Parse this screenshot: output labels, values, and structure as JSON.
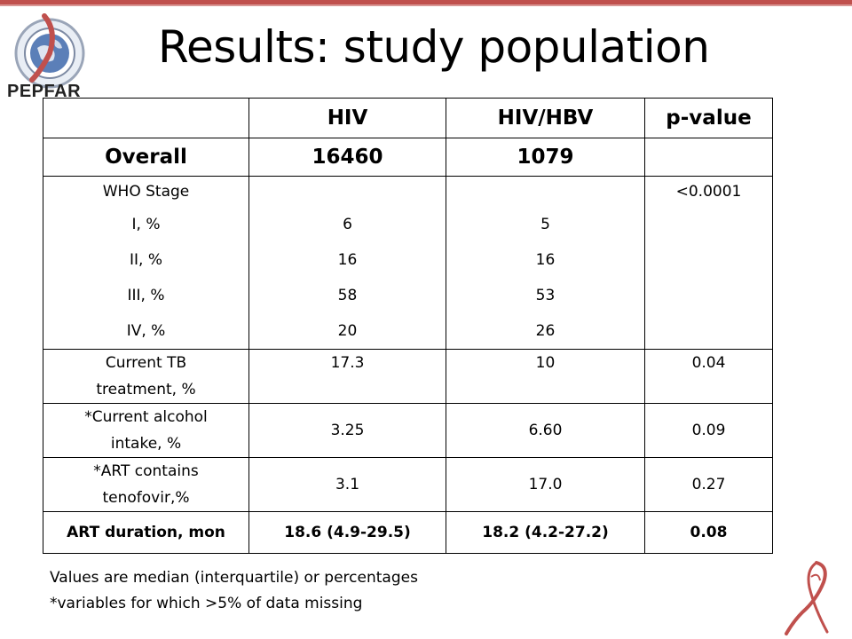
{
  "slide": {
    "title": "Results: study population",
    "logo_text": "PEPFAR"
  },
  "table": {
    "headers": [
      "",
      "HIV",
      "HIV/HBV",
      "p-value"
    ],
    "overall": {
      "label": "Overall",
      "hiv": "16460",
      "hivhbv": "1079",
      "p": ""
    },
    "who_stage": {
      "label": "WHO Stage",
      "p": "<0.0001",
      "rows": [
        {
          "label": "I, %",
          "hiv": "6",
          "hivhbv": "5"
        },
        {
          "label": "II, %",
          "hiv": "16",
          "hivhbv": "16"
        },
        {
          "label": "III, %",
          "hiv": "58",
          "hivhbv": "53"
        },
        {
          "label": "IV, %",
          "hiv": "20",
          "hivhbv": "26"
        }
      ]
    },
    "tb": {
      "label_line1": "Current TB",
      "label_line2": "treatment, %",
      "hiv": "17.3",
      "hivhbv": "10",
      "p": "0.04"
    },
    "alcohol": {
      "label_line1": "*Current alcohol",
      "label_line2": "intake, %",
      "hiv": "3.25",
      "hivhbv": "6.60",
      "p": "0.09"
    },
    "art_tenofovir": {
      "label_line1": "*ART contains",
      "label_line2": "tenofovir,%",
      "hiv": "3.1",
      "hivhbv": "17.0",
      "p": "0.27"
    },
    "art_duration": {
      "label": "ART duration, mon",
      "hiv": "18.6 (4.9-29.5)",
      "hivhbv": "18.2 (4.2-27.2)",
      "p": "0.08"
    }
  },
  "footnotes": {
    "line1": "Values are median (interquartile) or percentages",
    "line2": "*variables for which >5% of data missing"
  },
  "colors": {
    "accent_bar": "#c0504d",
    "ribbon": "#c0504d"
  }
}
